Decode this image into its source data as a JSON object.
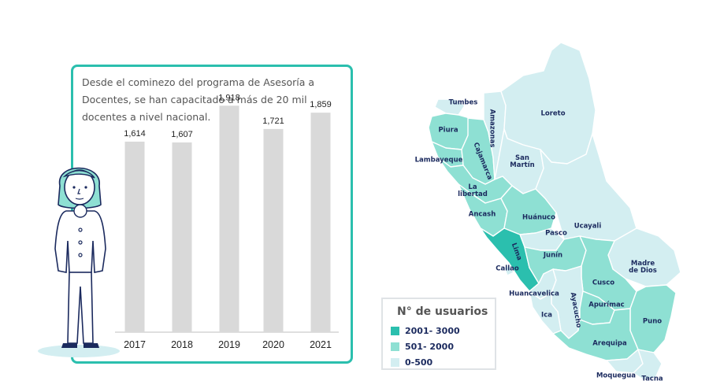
{
  "panel": {
    "text": "Desde el cominezo del programa de Asesoría a Docentes, se han capacitado a más de 20 mil docentes a nivel nacional."
  },
  "chart_data": {
    "type": "bar",
    "categories": [
      "2017",
      "2018",
      "2019",
      "2020",
      "2021"
    ],
    "values": [
      1614,
      1607,
      1918,
      1721,
      1859
    ],
    "value_labels": [
      "1,614",
      "1,607",
      "1,918",
      "1,721",
      "1,859"
    ],
    "title": "",
    "xlabel": "",
    "ylabel": "",
    "ylim": [
      0,
      2000
    ],
    "grid": false,
    "bar_color": "#d9d9d9"
  },
  "legend": {
    "title": "N° de usuarios",
    "items": [
      {
        "label": "2001- 3000",
        "color": "#2bbfae"
      },
      {
        "label": "501- 2000",
        "color": "#8ee0d3"
      },
      {
        "label": "0-500",
        "color": "#d3eef1"
      }
    ]
  },
  "map": {
    "regions": [
      {
        "name": "Tumbes",
        "label": "Tumbes",
        "color": "#d3eef1"
      },
      {
        "name": "Piura",
        "label": "Piura",
        "color": "#8ee0d3"
      },
      {
        "name": "Lambayeque",
        "label": "Lambayeque",
        "color": "#8ee0d3"
      },
      {
        "name": "Cajamarca",
        "label": "Cajamarca",
        "color": "#8ee0d3"
      },
      {
        "name": "Amazonas",
        "label": "Amazonas",
        "color": "#d3eef1"
      },
      {
        "name": "Loreto",
        "label": "Loreto",
        "color": "#d3eef1"
      },
      {
        "name": "San Martín",
        "label": "San\nMartín",
        "color": "#d3eef1"
      },
      {
        "name": "La libertad",
        "label": "La\nlibertad",
        "color": "#8ee0d3"
      },
      {
        "name": "Ancash",
        "label": "Ancash",
        "color": "#8ee0d3"
      },
      {
        "name": "Huánuco",
        "label": "Huánuco",
        "color": "#8ee0d3"
      },
      {
        "name": "Pasco",
        "label": "Pasco",
        "color": "#d3eef1"
      },
      {
        "name": "Ucayali",
        "label": "Ucayali",
        "color": "#d3eef1"
      },
      {
        "name": "Lima",
        "label": "Lima",
        "color": "#2bbfae"
      },
      {
        "name": "Callao",
        "label": "Callao",
        "color": "#d3eef1"
      },
      {
        "name": "Junín",
        "label": "Junín",
        "color": "#8ee0d3"
      },
      {
        "name": "Madre de Dios",
        "label": "Madre\nde Dios",
        "color": "#d3eef1"
      },
      {
        "name": "Cusco",
        "label": "Cusco",
        "color": "#8ee0d3"
      },
      {
        "name": "Huancavelica",
        "label": "Huancavelica",
        "color": "#d3eef1"
      },
      {
        "name": "Ayacucho",
        "label": "Ayacucho",
        "color": "#d3eef1"
      },
      {
        "name": "Apurímac",
        "label": "Apurímac",
        "color": "#8ee0d3"
      },
      {
        "name": "Ica",
        "label": "Ica",
        "color": "#d3eef1"
      },
      {
        "name": "Puno",
        "label": "Puno",
        "color": "#8ee0d3"
      },
      {
        "name": "Arequipa",
        "label": "Arequipa",
        "color": "#8ee0d3"
      },
      {
        "name": "Moquegua",
        "label": "Moquegua",
        "color": "#d3eef1"
      },
      {
        "name": "Tacna",
        "label": "Tacna",
        "color": "#d3eef1"
      }
    ]
  },
  "colors": {
    "accent": "#2bbfae",
    "mid": "#8ee0d3",
    "light": "#d3eef1",
    "label_dark": "#1b2a5e",
    "figure_stroke": "#1b2a5e"
  }
}
